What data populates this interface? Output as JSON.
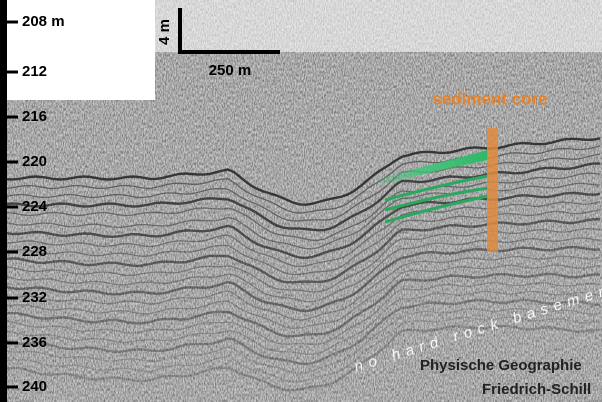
{
  "depth_axis": {
    "labels": [
      "208 m",
      "212",
      "216",
      "220",
      "224",
      "228",
      "232",
      "236",
      "240"
    ]
  },
  "scale_bar": {
    "vertical": "4 m",
    "horizontal": "250 m"
  },
  "annotations": {
    "core": "sediment core",
    "basement": "no hard rock basement"
  },
  "credit": {
    "line1": "Physische Geographie",
    "line2": "Friedrich-Schill"
  }
}
